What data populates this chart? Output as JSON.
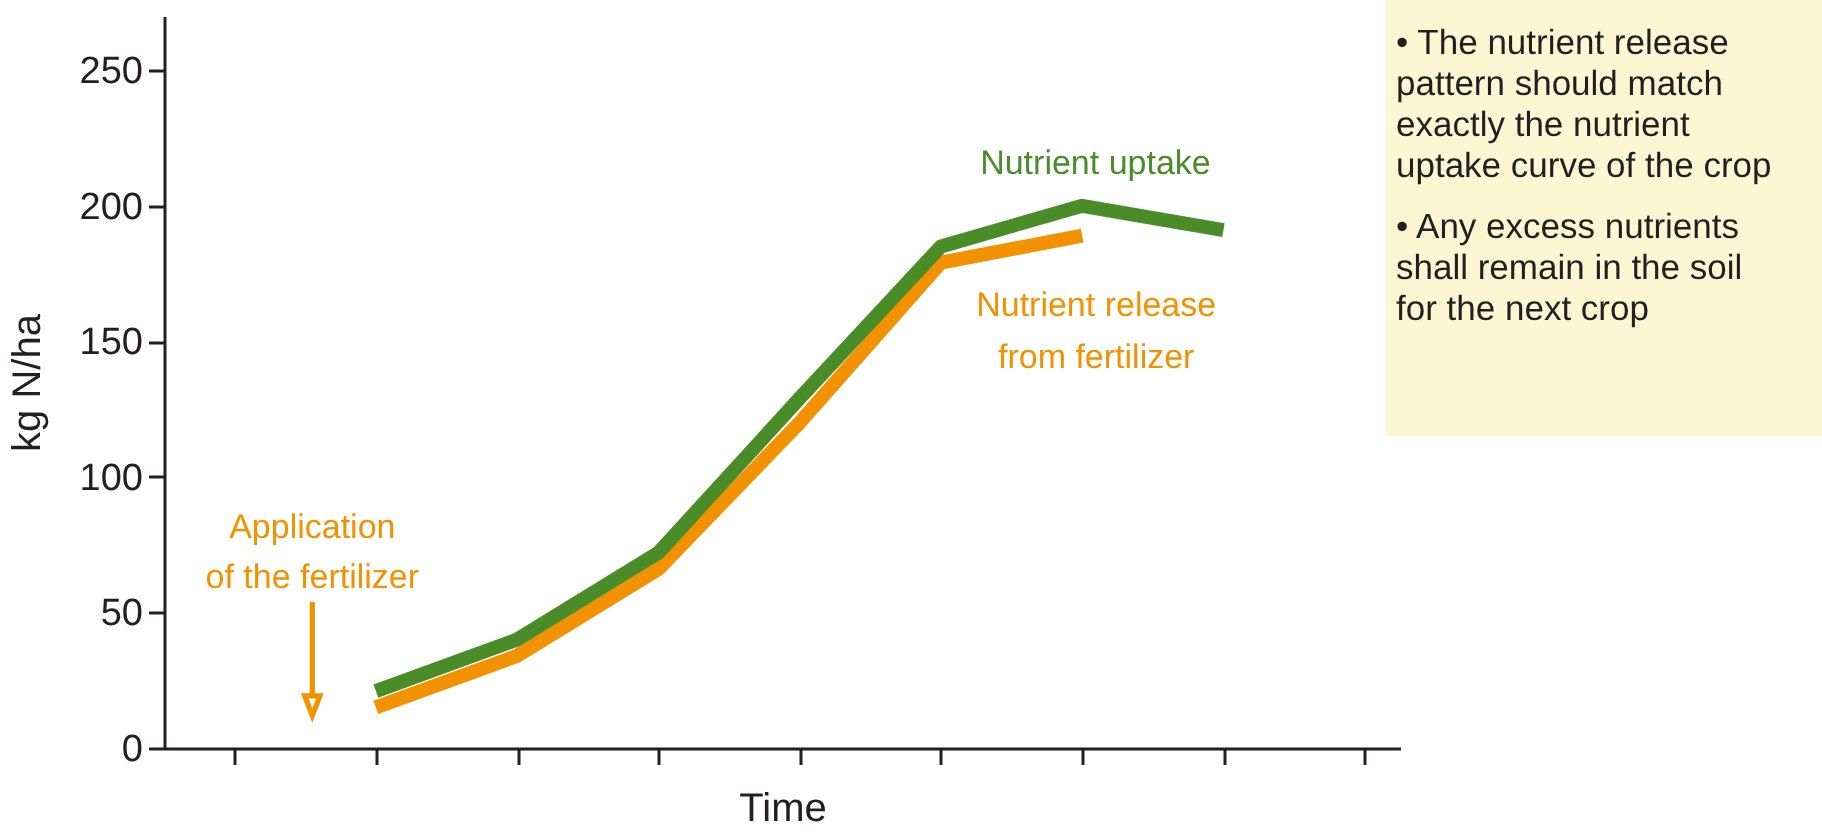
{
  "chart_data": {
    "type": "line",
    "xlabel": "Time",
    "ylabel": "kg N/ha",
    "categories": [
      null,
      null,
      null,
      null,
      null,
      null,
      null,
      null,
      null
    ],
    "ylim": [
      0,
      270
    ],
    "yticks": [
      0,
      50,
      100,
      150,
      200,
      250
    ],
    "tick_labels": "y",
    "line_style": "solid",
    "series": [
      {
        "name": "Nutrient uptake",
        "color": "#4a8c28",
        "values": [
          null,
          21,
          40,
          72,
          129,
          185,
          200,
          191,
          null
        ]
      },
      {
        "name": "Nutrient release\nfrom fertilizer",
        "color": "#f39200",
        "values": [
          null,
          15,
          34,
          66,
          120,
          179,
          189,
          null,
          null
        ]
      }
    ],
    "annotations": [
      "Application\nof the fertilizer",
      "• The nutrient release\npattern should match\nexactly the nutrient\nuptake curve of the crop",
      "• Any excess nutrients\nshall remain in the soil\nfor the next crop"
    ]
  }
}
